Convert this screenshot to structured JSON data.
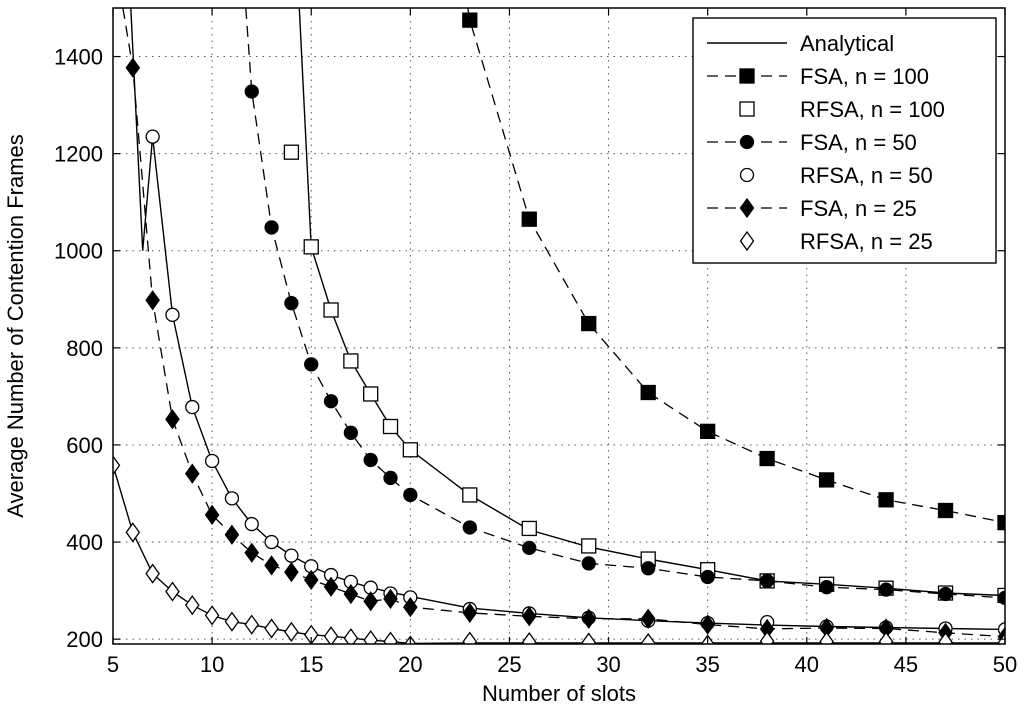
{
  "chart_data": {
    "type": "line",
    "xlabel": "Number of slots",
    "ylabel": "Average Number of Contention Frames",
    "xlim": [
      5,
      50
    ],
    "ylim": [
      190,
      1500
    ],
    "xticks": [
      5,
      10,
      15,
      20,
      25,
      30,
      35,
      40,
      45,
      50
    ],
    "yticks": [
      200,
      400,
      600,
      800,
      1000,
      1200,
      1400
    ],
    "grid": true,
    "legend_position": "top-right",
    "series": [
      {
        "name": "Analytical",
        "style": "solid-line",
        "color": "#000000",
        "segments": [
          {
            "x": [
              5.9,
              6.5,
              7,
              8,
              9,
              10,
              11,
              12,
              13,
              14,
              15,
              16,
              17,
              18,
              19,
              20,
              23,
              26,
              29,
              32,
              35,
              38,
              41,
              44,
              47,
              50
            ],
            "y": [
              1500,
              1000,
              1235,
              868,
              678,
              567,
              490,
              437,
              400,
              372,
              350,
              332,
              318,
              306,
              297,
              288,
              264,
              253,
              244,
              238,
              233,
              229,
              226,
              224,
              222,
              220
            ]
          },
          {
            "x": [
              14.4,
              15,
              16,
              17,
              18,
              19,
              20,
              23,
              26,
              29,
              32,
              35,
              38,
              41,
              44,
              47,
              50
            ],
            "y": [
              1500,
              1008,
              878,
              773,
              705,
              638,
              590,
              497,
              425,
              390,
              365,
              343,
              320,
              313,
              305,
              295,
              290
            ]
          },
          {
            "x": [
              5,
              6,
              7,
              8,
              9,
              10,
              11,
              12,
              13,
              14,
              15,
              16,
              17,
              18,
              19,
              20,
              23,
              26,
              29,
              32,
              35,
              38,
              41,
              44,
              47,
              50
            ],
            "y": [
              558,
              420,
              335,
              298,
              270,
              249,
              236,
              230,
              222,
              215,
              209,
              206,
              202,
              198,
              195,
              191,
              192,
              192,
              192,
              192,
              192,
              192,
              192,
              192,
              192,
              192
            ]
          }
        ]
      },
      {
        "name": "FSA, n = 100",
        "marker": "square",
        "filled": true,
        "line": "dashed",
        "x": [
          22.9,
          23,
          26,
          29,
          32,
          35,
          38,
          41,
          44,
          47,
          50
        ],
        "y": [
          1500,
          1475,
          1065,
          850,
          708,
          628,
          572,
          528,
          487,
          465,
          440
        ]
      },
      {
        "name": "RFSA, n = 100",
        "marker": "square",
        "filled": false,
        "line": "none",
        "x": [
          14,
          15,
          16,
          17,
          18,
          19,
          20,
          23,
          26,
          29,
          32,
          35,
          38,
          41,
          44,
          47,
          50
        ],
        "y": [
          1203,
          1008,
          878,
          773,
          705,
          638,
          590,
          497,
          428,
          392,
          365,
          343,
          320,
          313,
          305,
          295,
          290
        ]
      },
      {
        "name": "FSA, n = 50",
        "marker": "circle",
        "filled": true,
        "line": "dashed",
        "x": [
          11.7,
          12,
          13,
          14,
          15,
          16,
          17,
          18,
          19,
          20,
          23,
          26,
          29,
          32,
          35,
          38,
          41,
          44,
          47,
          50
        ],
        "y": [
          1500,
          1328,
          1048,
          892,
          766,
          690,
          625,
          569,
          532,
          497,
          430,
          388,
          356,
          346,
          328,
          320,
          307,
          302,
          293,
          285
        ]
      },
      {
        "name": "RFSA, n = 50",
        "marker": "circle",
        "filled": false,
        "line": "none",
        "x": [
          7,
          8,
          9,
          10,
          11,
          12,
          13,
          14,
          15,
          16,
          17,
          18,
          19,
          20,
          23,
          26,
          29,
          32,
          35,
          38,
          41,
          44,
          47,
          50
        ],
        "y": [
          1235,
          868,
          678,
          567,
          490,
          437,
          400,
          372,
          350,
          332,
          318,
          306,
          294,
          286,
          262,
          253,
          244,
          238,
          233,
          235,
          226,
          224,
          222,
          220
        ]
      },
      {
        "name": "FSA, n = 25",
        "marker": "diamond",
        "filled": true,
        "line": "dashed",
        "x": [
          5.5,
          6,
          7,
          8,
          9,
          10,
          11,
          12,
          13,
          14,
          15,
          16,
          17,
          18,
          19,
          20,
          23,
          26,
          29,
          32,
          35,
          38,
          41,
          44,
          47,
          50
        ],
        "y": [
          1500,
          1377,
          898,
          653,
          541,
          456,
          415,
          378,
          352,
          338,
          322,
          308,
          293,
          278,
          283,
          266,
          254,
          247,
          242,
          242,
          230,
          221,
          223,
          222,
          213,
          205
        ]
      },
      {
        "name": "RFSA, n = 25",
        "marker": "diamond",
        "filled": false,
        "line": "none",
        "x": [
          5,
          6,
          7,
          8,
          9,
          10,
          11,
          12,
          13,
          14,
          15,
          16,
          17,
          18,
          19,
          20,
          23,
          26,
          29,
          32,
          35,
          38,
          41,
          44,
          47,
          50
        ],
        "y": [
          558,
          420,
          335,
          298,
          270,
          249,
          236,
          230,
          222,
          215,
          209,
          206,
          202,
          198,
          195,
          187,
          195,
          194,
          193,
          192,
          189,
          196,
          195,
          195,
          194,
          193
        ]
      }
    ]
  }
}
